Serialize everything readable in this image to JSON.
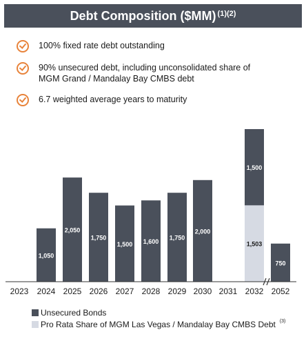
{
  "header": {
    "title": "Debt Composition ($MM)",
    "superscript": "(1)(2)"
  },
  "bullets": [
    {
      "text": "100% fixed rate debt outstanding"
    },
    {
      "text": "90% unsecured debt, including unconsolidated share of MGM Grand / Mandalay Bay CMBS debt"
    },
    {
      "text": "6.7 weighted average years to maturity"
    }
  ],
  "chart_data": {
    "type": "bar",
    "stacked": true,
    "categories": [
      "2023",
      "2024",
      "2025",
      "2026",
      "2027",
      "2028",
      "2029",
      "2030",
      "2031",
      "2032",
      "2052"
    ],
    "series": [
      {
        "name": "Unsecured Bonds",
        "color": "#4a505b",
        "values": [
          0,
          1050,
          2050,
          1750,
          1500,
          1600,
          1750,
          2000,
          0,
          1500,
          750
        ]
      },
      {
        "name": "Pro Rata Share of MGM Las Vegas / Mandalay Bay CMBS Debt",
        "color": "#d6dae3",
        "values": [
          0,
          0,
          0,
          0,
          0,
          0,
          0,
          0,
          0,
          1503,
          0
        ]
      }
    ],
    "data_labels": [
      "",
      "1,050",
      "2,050",
      "1,750",
      "1,500",
      "1,600",
      "1,750",
      "2,000",
      "",
      "1,500",
      "750"
    ],
    "cmbs_label": "1,503",
    "axis_break_between": [
      "2032",
      "2052"
    ],
    "legend_position": "bottom"
  },
  "legend": [
    {
      "label": "Unsecured Bonds",
      "color": "#4a505b"
    },
    {
      "label": "Pro Rata Share of MGM Las Vegas / Mandalay Bay CMBS Debt",
      "color": "#d6dae3",
      "footnote": "(3)"
    }
  ]
}
